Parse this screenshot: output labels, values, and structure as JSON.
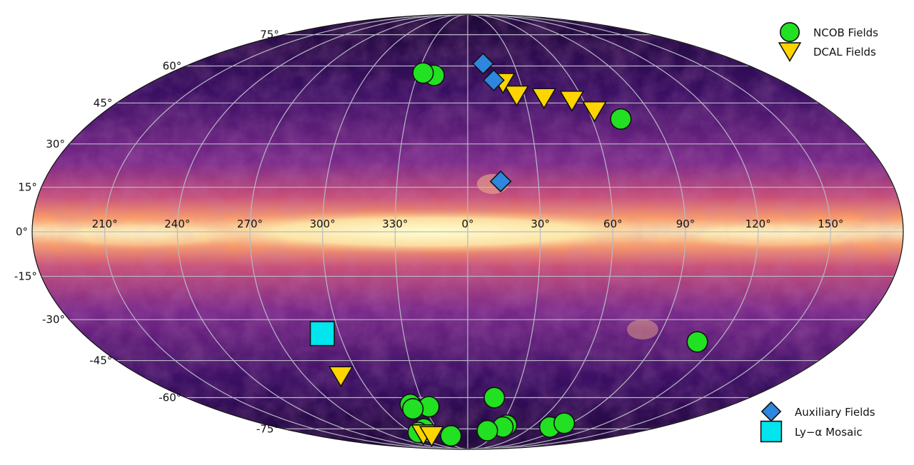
{
  "chart_data": {
    "type": "scatter",
    "projection": "mollweide",
    "coordinate_system": "galactic",
    "grid": true,
    "lon_ticks": [
      150,
      120,
      90,
      60,
      30,
      0,
      330,
      300,
      270,
      240,
      210
    ],
    "lat_ticks": [
      75,
      60,
      45,
      30,
      15,
      0,
      -15,
      -30,
      -45,
      -60,
      -75
    ],
    "lon_tick_labels": [
      "150°",
      "120°",
      "90°",
      "60°",
      "30°",
      "0°",
      "330°",
      "300°",
      "270°",
      "240°",
      "210°"
    ],
    "lat_tick_labels": [
      "75°",
      "60°",
      "45°",
      "30°",
      "15°",
      "0°",
      "-15°",
      "-30°",
      "-45°",
      "-60°",
      "-75°"
    ],
    "colors": {
      "ncob": "#22e022",
      "dcal": "#ffd400",
      "auxiliary": "#2e86de",
      "mosaic": "#00e5ee",
      "grid": "#b8b8c4",
      "background_dark": "#2a0a4a",
      "plane_bright": "#fdfdc0"
    },
    "legends": [
      {
        "placement": "top-right",
        "entries": [
          {
            "series": "ncob",
            "label": "NCOB Fields",
            "marker": "circle"
          },
          {
            "series": "dcal",
            "label": "DCAL Fields",
            "marker": "triangle-down"
          }
        ]
      },
      {
        "placement": "bottom-right",
        "entries": [
          {
            "series": "auxiliary",
            "label": "Auxiliary Fields",
            "marker": "diamond"
          },
          {
            "series": "mosaic",
            "label": "Ly−α Mosaic",
            "marker": "square"
          }
        ]
      }
    ],
    "series": [
      {
        "key": "ncob",
        "name": "NCOB Fields",
        "marker": "circle",
        "points": [
          [
            -20,
            56
          ],
          [
            -27,
            57
          ],
          [
            74,
            39
          ],
          [
            110,
            -38
          ],
          [
            17,
            -60
          ],
          [
            -27,
            -64
          ],
          [
            -39,
            -63
          ],
          [
            -39,
            -65
          ],
          [
            77,
            -74
          ],
          [
            84,
            -72
          ],
          [
            35,
            -73
          ],
          [
            33,
            -74
          ],
          [
            20,
            -76
          ],
          [
            -43,
            -75
          ],
          [
            -53,
            -77
          ],
          [
            -20,
            -79
          ]
        ]
      },
      {
        "key": "dcal",
        "name": "DCAL Fields",
        "marker": "triangle-down",
        "points": [
          [
            63,
            42
          ],
          [
            54,
            46
          ],
          [
            40,
            47
          ],
          [
            26,
            48
          ],
          [
            20,
            53
          ],
          [
            -70,
            -51
          ],
          [
            -50,
            -78
          ],
          [
            -43,
            -79
          ]
        ]
      },
      {
        "key": "auxiliary",
        "name": "Auxiliary Fields",
        "marker": "diamond",
        "points": [
          [
            14,
            17
          ],
          [
            10,
            61
          ],
          [
            15,
            54
          ]
        ]
      },
      {
        "key": "mosaic",
        "name": "Ly−α Mosaic",
        "marker": "square",
        "points": [
          [
            -68,
            -35
          ]
        ]
      }
    ]
  }
}
